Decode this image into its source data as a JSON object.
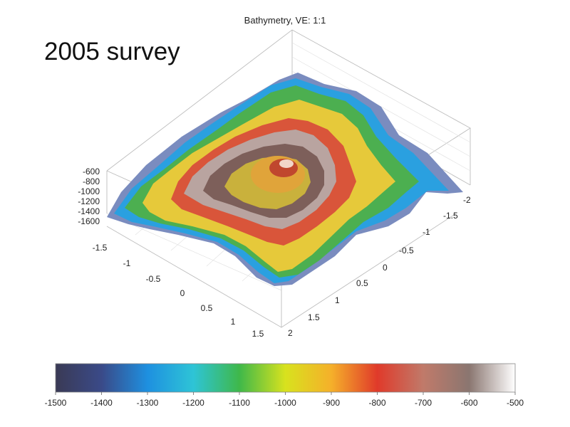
{
  "chart_data": {
    "type": "surface",
    "title": "Bathymetry, VE: 1:1",
    "annotation": "2005 survey",
    "z_ticks": [
      "-600",
      "-800",
      "-1000",
      "-1200",
      "-1400",
      "-1600"
    ],
    "x_ticks": [
      "-1.5",
      "-1",
      "-0.5",
      "0",
      "0.5",
      "1",
      "1.5"
    ],
    "y_ticks": [
      "-2",
      "-1.5",
      "-1",
      "-0.5",
      "0",
      "0.5",
      "1",
      "1.5",
      "2"
    ],
    "zlim": [
      -1600,
      -500
    ],
    "xlim": [
      -1.5,
      1.5
    ],
    "ylim": [
      -2,
      2
    ],
    "colorbar": {
      "ticks": [
        "-1500",
        "-1400",
        "-1300",
        "-1200",
        "-1100",
        "-1000",
        "-900",
        "-800",
        "-700",
        "-600",
        "-500"
      ],
      "range": [
        -1500,
        -500
      ],
      "colors": [
        "#3a3a55",
        "#3a4a88",
        "#1e90e0",
        "#2ec4d6",
        "#3fb84a",
        "#d8e21e",
        "#f5b02a",
        "#e03a2a",
        "#c07a6a",
        "#8a7670",
        "#ffffff"
      ]
    },
    "grid": true
  }
}
